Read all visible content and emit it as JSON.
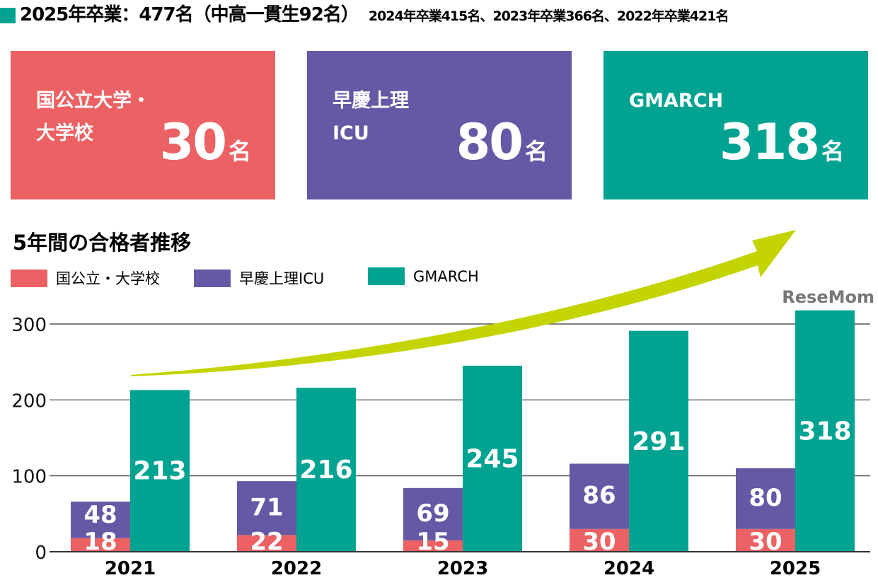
{
  "header": {
    "main": "2025年卒業：477名（中高一貫生92名）",
    "sub": "2024年卒業415名、2023年卒業366名、2022年卒業421名"
  },
  "cards": [
    {
      "label": "国公立大学・\n大学校",
      "value": "30",
      "unit": "名",
      "color": "#ec6164"
    },
    {
      "label": "早慶上理\nICU",
      "value": "80",
      "unit": "名",
      "color": "#6558a5"
    },
    {
      "label": "GMARCH",
      "value": "318",
      "unit": "名",
      "color": "#00a391"
    }
  ],
  "watermark": "ReseMom",
  "chart_data": {
    "type": "bar",
    "title": "5年間の合格者推移",
    "categories": [
      "2021",
      "2022",
      "2023",
      "2024",
      "2025"
    ],
    "series": [
      {
        "name": "国公立・大学校",
        "values": [
          18,
          22,
          15,
          30,
          30
        ],
        "color": "#ec6164",
        "stack": "a"
      },
      {
        "name": "早慶上理ICU",
        "values": [
          48,
          71,
          69,
          86,
          80
        ],
        "color": "#6558a5",
        "stack": "a"
      },
      {
        "name": "GMARCH",
        "values": [
          213,
          216,
          245,
          291,
          318
        ],
        "color": "#00a391",
        "stack": "b"
      }
    ],
    "yticks": [
      "0",
      "100",
      "200",
      "300"
    ],
    "ylim": [
      0,
      330
    ],
    "grid": true,
    "legend": "top-left",
    "arrow_color": "#c3d400"
  }
}
